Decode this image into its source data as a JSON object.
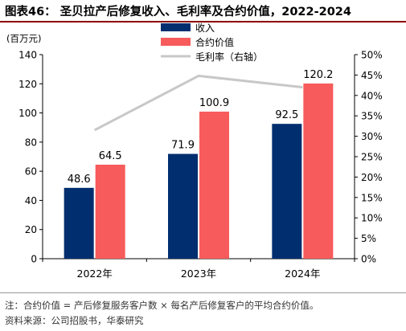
{
  "figure_title": "图表46： 圣贝拉产后修复收入、毛利率及合约价值，2022-2024",
  "notes": {
    "note": "注：合约价值 = 产后修复服务客户数 × 每名产后修复客户的平均合约价值。",
    "source": "资料来源：公司招股书，华泰研究"
  },
  "colors": {
    "revenue": "#002e6f",
    "contract": "#f75b5b",
    "margin": "#c8c8c8"
  },
  "chart_data": {
    "type": "bar",
    "categories": [
      "2022年",
      "2023年",
      "2024年"
    ],
    "y_left_unit": "(百万元)",
    "ylim": [
      0,
      140
    ],
    "y_left_ticks": [
      "0",
      "20",
      "40",
      "60",
      "80",
      "100",
      "120",
      "140"
    ],
    "y2lim": [
      0,
      50
    ],
    "y_right_ticks": [
      "0%",
      "5%",
      "10%",
      "15%",
      "20%",
      "25%",
      "30%",
      "35%",
      "40%",
      "45%",
      "50%"
    ],
    "series": [
      {
        "name": "收入",
        "type": "bar",
        "values": [
          48.6,
          71.9,
          92.5
        ],
        "labels": [
          "48.6",
          "71.9",
          "92.5"
        ]
      },
      {
        "name": "合约价值",
        "type": "bar",
        "values": [
          64.5,
          100.9,
          120.2
        ],
        "labels": [
          "64.5",
          "100.9",
          "120.2"
        ]
      },
      {
        "name": "毛利率（右轴）",
        "type": "line",
        "axis": "right",
        "values": [
          31.5,
          44.8,
          42.0
        ]
      }
    ],
    "legend_position": "top-center",
    "grid": false
  }
}
